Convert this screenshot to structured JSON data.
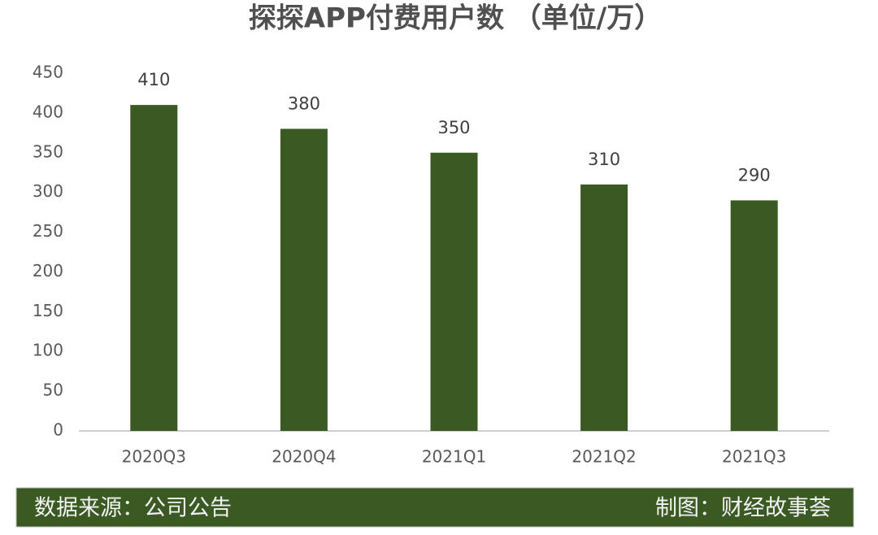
{
  "chart_data": {
    "type": "bar",
    "title": "探探APP付费用户数 （单位/万）",
    "categories": [
      "2020Q3",
      "2020Q4",
      "2021Q1",
      "2021Q2",
      "2021Q3"
    ],
    "values": [
      410,
      380,
      350,
      310,
      290
    ],
    "color": "#3b5a23",
    "ylim": [
      0,
      450
    ],
    "yticks": [
      0,
      50,
      100,
      150,
      200,
      250,
      300,
      350,
      400,
      450
    ],
    "grid": false
  },
  "footer": {
    "source": "数据来源：公司公告",
    "credit": "制图：财经故事荟"
  }
}
